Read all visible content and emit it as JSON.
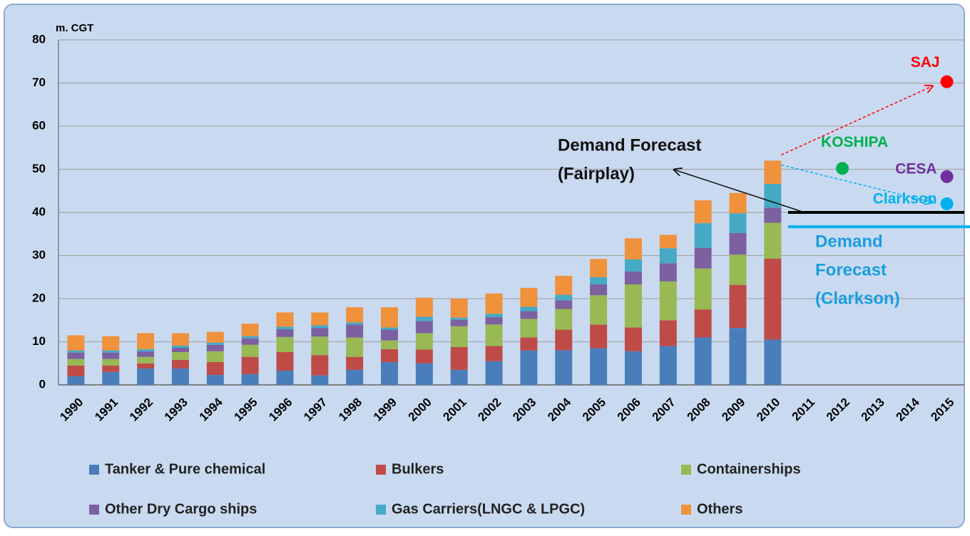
{
  "chart_data": {
    "type": "stacked_bar",
    "y_label": "m. CGT",
    "categories": [
      "1990",
      "1991",
      "1992",
      "1993",
      "1994",
      "1995",
      "1996",
      "1997",
      "1998",
      "1999",
      "2000",
      "2001",
      "2002",
      "2003",
      "2004",
      "2005",
      "2006",
      "2007",
      "2008",
      "2009",
      "2010",
      "2011",
      "2012",
      "2013",
      "2014",
      "2015"
    ],
    "series": [
      {
        "name": "Tanker & Pure chemical",
        "color": "#4a7ebb",
        "values": [
          2,
          3,
          3.8,
          3.8,
          2.3,
          2.5,
          3.3,
          2.2,
          3.5,
          5.3,
          5,
          3.5,
          5.5,
          8,
          8,
          8.5,
          7.8,
          9,
          11,
          13.2,
          10.5,
          null,
          null,
          null,
          null,
          null
        ]
      },
      {
        "name": "Bulkers",
        "color": "#be4b48",
        "values": [
          2.5,
          1.5,
          1.2,
          2,
          3,
          4,
          4.3,
          4.7,
          3,
          3,
          3.2,
          5.3,
          3.5,
          3,
          4.8,
          5.5,
          5.5,
          6,
          6.5,
          10,
          18.8,
          null,
          null,
          null,
          null,
          null
        ]
      },
      {
        "name": "Containerships",
        "color": "#98b954",
        "values": [
          1.5,
          1.5,
          1.5,
          1.8,
          2.5,
          2.8,
          3.5,
          4.3,
          4.5,
          2,
          3.8,
          4.8,
          5,
          4.3,
          4.8,
          6.8,
          10,
          9,
          9.5,
          7,
          8.3,
          null,
          null,
          null,
          null,
          null
        ]
      },
      {
        "name": "Other Dry Cargo ships",
        "color": "#7d60a0",
        "values": [
          1.5,
          1.5,
          1.3,
          1,
          1.5,
          1.5,
          1.8,
          2,
          3,
          2.5,
          2.8,
          1.5,
          1.7,
          1.8,
          2,
          2.5,
          3,
          4.2,
          4.8,
          5,
          3.5,
          null,
          null,
          null,
          null,
          null
        ]
      },
      {
        "name": "Gas Carriers(LNGC & LPGC)",
        "color": "#46aac5",
        "values": [
          0.5,
          0.5,
          0.5,
          0.5,
          0.5,
          0.5,
          0.6,
          0.6,
          0.5,
          0.5,
          1,
          0.5,
          0.8,
          1,
          1.3,
          1.7,
          2.8,
          3.5,
          5.7,
          4.6,
          5.5,
          null,
          null,
          null,
          null,
          null
        ]
      },
      {
        "name": "Others",
        "color": "#f0913c",
        "values": [
          3.5,
          3.3,
          3.7,
          2.9,
          2.5,
          2.9,
          3.3,
          3,
          3.5,
          4.7,
          4.4,
          4.4,
          4.7,
          4.4,
          4.4,
          4.2,
          4.9,
          3.1,
          5.3,
          4.7,
          5.4,
          null,
          null,
          null,
          null,
          null
        ]
      }
    ],
    "forecast_points": [
      {
        "name": "SAJ",
        "category": 25,
        "value": 70.3,
        "color": "#ff0000"
      },
      {
        "name": "KOSHIPA",
        "category": 22,
        "value": 50.2,
        "color": "#00b050"
      },
      {
        "name": "CESA",
        "category": 25,
        "value": 48.3,
        "color": "#7030a0"
      },
      {
        "name": "Clarkson",
        "category": 25,
        "value": 42,
        "color": "#00b0f0"
      }
    ],
    "forecast_lines": [
      {
        "label_lines": [
          "Demand  Forecast",
          "(Fairplay)"
        ],
        "value": 40,
        "color": "#000000"
      },
      {
        "label_lines": [
          "Demand",
          "Forecast",
          "(Clarkson)"
        ],
        "value": 38,
        "color": "#00b0f0"
      }
    ],
    "ylim": [
      0,
      80
    ],
    "yticks": [
      0,
      10,
      20,
      30,
      40,
      50,
      60,
      70,
      80
    ],
    "grid": true
  }
}
